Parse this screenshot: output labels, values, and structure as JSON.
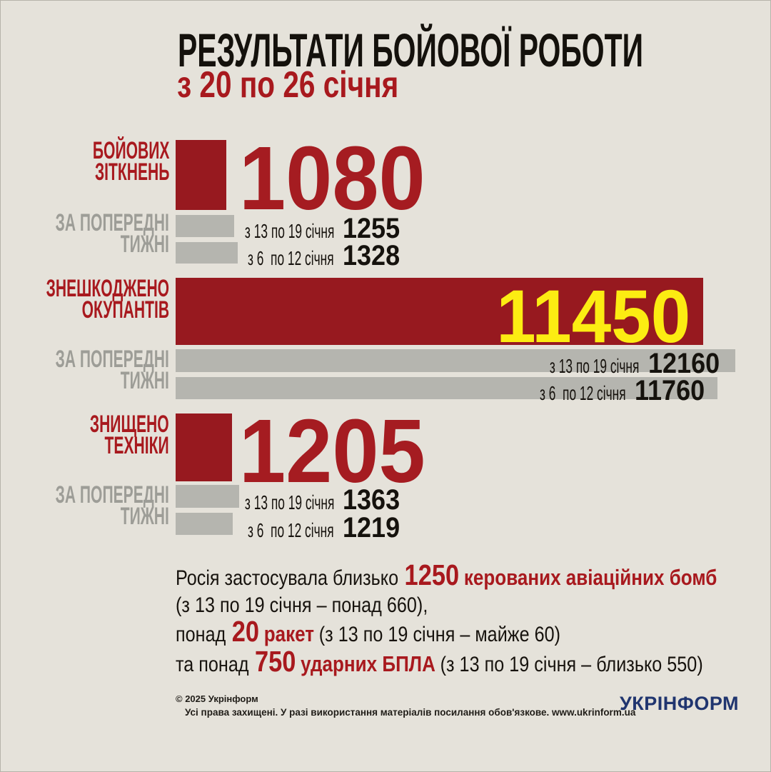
{
  "header": {
    "title": "РЕЗУЛЬТАТИ БОЙОВОЇ РОБОТИ",
    "subtitle": "з 20 по 26 січня"
  },
  "labels": {
    "prev_line1": "ЗА ПОПЕРЕДНІ",
    "prev_line2": "ТИЖНІ"
  },
  "sections": [
    {
      "label_line1": "БОЙОВИХ",
      "label_line2": "ЗІТКНЕНЬ",
      "value": "1080",
      "prev": [
        {
          "period": "з 13 по 19 січня",
          "value": "1255"
        },
        {
          "period": "з 6  по 12 січня",
          "value": "1328"
        }
      ]
    },
    {
      "label_line1": "ЗНЕШКОДЖЕНО",
      "label_line2": "ОКУПАНТІВ",
      "value": "11450",
      "prev": [
        {
          "period": "з 13 по 19 січня",
          "value": "12160"
        },
        {
          "period": "з 6  по 12 січня",
          "value": "11760"
        }
      ]
    },
    {
      "label_line1": "ЗНИЩЕНО",
      "label_line2": "ТЕХНІКИ",
      "value": "1205",
      "prev": [
        {
          "period": "з 13 по 19 січня",
          "value": "1363"
        },
        {
          "period": "з 6  по 12 січня",
          "value": "1219"
        }
      ]
    }
  ],
  "notes": {
    "line1_black": "Росія застосувала близько",
    "line1_num": "1250",
    "line1_red": "керованих авіаційних бомб",
    "line2": "(з 13 по 19 січня – понад 660),",
    "line3_black": "понад",
    "line3_num": "20",
    "line3_red": "ракет",
    "line3_rest": "(з 13 по 19 січня – майже 60)",
    "line4_black": "та понад",
    "line4_num": "750",
    "line4_red": "ударних БПЛА",
    "line4_rest": "(з 13 по 19 січня – близько 550)"
  },
  "footer": {
    "copyright": "© 2025 Укрінформ",
    "rights": "Усі права захищені. У разі використання матеріалів посилання обов'язкове. www.ukrinform.ua",
    "logo": "УКРІНФОРМ"
  },
  "colors": {
    "background": "#e5e2da",
    "bar_red": "#97191f",
    "number_red": "#a51c21",
    "accent_red": "#a8191e",
    "yellow": "#fcec12",
    "bar_gray": "#b5b5af",
    "label_gray": "#9d9d97",
    "text_black": "#17130e",
    "logo_navy": "#20356f"
  },
  "chart_data": {
    "type": "bar",
    "orientation": "horizontal",
    "title": "РЕЗУЛЬТАТИ БОЙОВОЇ РОБОТИ",
    "subtitle": "з 20 по 26 січня",
    "legend_previous_weeks": "ЗА ПОПЕРЕДНІ ТИЖНІ",
    "groups": [
      {
        "category": "Бойових зіткнень",
        "current": {
          "period": "з 20 по 26 січня",
          "value": 1080
        },
        "previous": [
          {
            "period": "з 13 по 19 січня",
            "value": 1255
          },
          {
            "period": "з 6 по 12 січня",
            "value": 1328
          }
        ]
      },
      {
        "category": "Знешкоджено окупантів",
        "current": {
          "period": "з 20 по 26 січня",
          "value": 11450
        },
        "previous": [
          {
            "period": "з 13 по 19 січня",
            "value": 12160
          },
          {
            "period": "з 6 по 12 січня",
            "value": 11760
          }
        ]
      },
      {
        "category": "Знищено техніки",
        "current": {
          "period": "з 20 по 26 січня",
          "value": 1205
        },
        "previous": [
          {
            "period": "з 13 по 19 січня",
            "value": 1363
          },
          {
            "period": "з 6 по 12 січня",
            "value": 1219
          }
        ]
      }
    ],
    "annotations": [
      "Росія застосувала близько 1250 керованих авіаційних бомб (з 13 по 19 січня – понад 660),",
      "понад 20 ракет (з 13 по 19 січня – майже 60)",
      "та понад 750 ударних БПЛА (з 13 по 19 січня – близько 550)"
    ]
  }
}
